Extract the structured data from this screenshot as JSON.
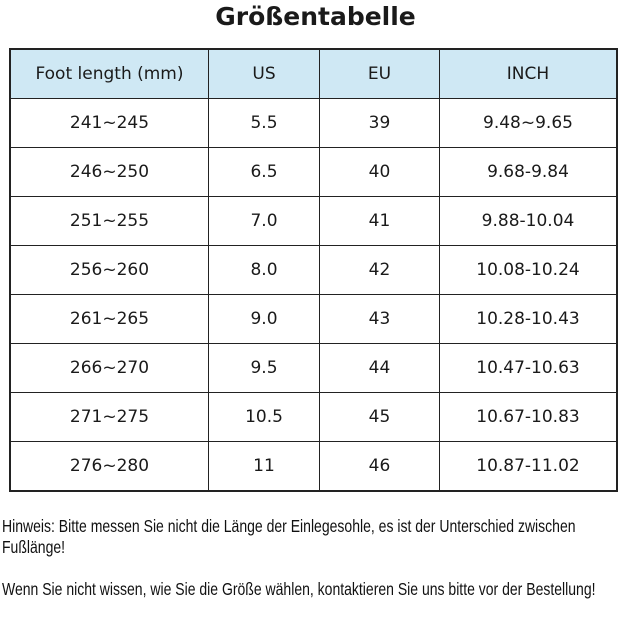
{
  "title": "Größentabelle",
  "table": {
    "headers": [
      "Foot length (mm)",
      "US",
      "EU",
      "INCH"
    ],
    "rows": [
      [
        "241~245",
        "5.5",
        "39",
        "9.48~9.65"
      ],
      [
        "246~250",
        "6.5",
        "40",
        "9.68-9.84"
      ],
      [
        "251~255",
        "7.0",
        "41",
        "9.88-10.04"
      ],
      [
        "256~260",
        "8.0",
        "42",
        "10.08-10.24"
      ],
      [
        "261~265",
        "9.0",
        "43",
        "10.28-10.43"
      ],
      [
        "266~270",
        "9.5",
        "44",
        "10.47-10.63"
      ],
      [
        "271~275",
        "10.5",
        "45",
        "10.67-10.83"
      ],
      [
        "276~280",
        "11",
        "46",
        "10.87-11.02"
      ]
    ]
  },
  "notes": [
    "Hinweis: Bitte messen Sie nicht die Länge der Einlegesohle, es ist der Unterschied zwischen Fußlänge!",
    "Wenn Sie nicht wissen, wie Sie die Größe wählen, kontaktieren Sie uns bitte vor der Bestellung!"
  ],
  "colors": {
    "header_bg": "#cfe8f4",
    "border": "#222222"
  }
}
